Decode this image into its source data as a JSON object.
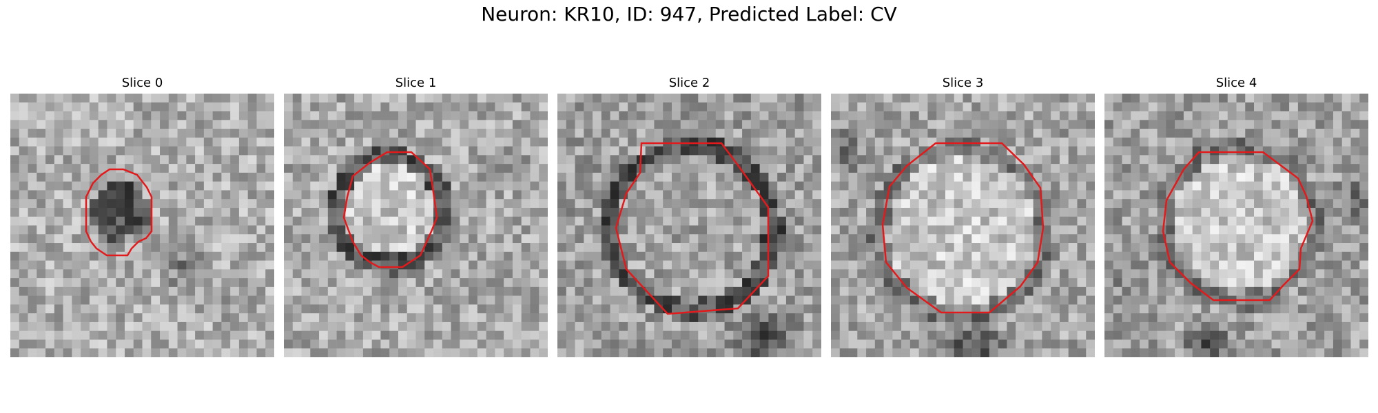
{
  "figure": {
    "title": "Neuron: KR10, ID: 947, Predicted Label: CV",
    "contour_color": "#e31a1c",
    "panels": [
      {
        "title": "Slice 0",
        "cell": "dark-core"
      },
      {
        "title": "Slice 1",
        "cell": "bright-core"
      },
      {
        "title": "Slice 2",
        "cell": "large-gray"
      },
      {
        "title": "Slice 3",
        "cell": "bright-lower"
      },
      {
        "title": "Slice 4",
        "cell": "bright-upper"
      }
    ]
  }
}
